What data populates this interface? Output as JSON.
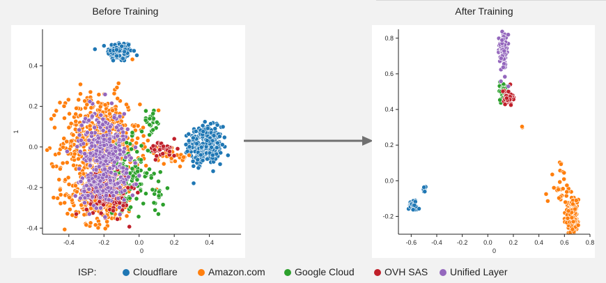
{
  "chart_data": [
    {
      "type": "scatter",
      "title": "Before Training",
      "xlabel": "0",
      "ylabel": "1",
      "xlim": [
        -0.55,
        0.58
      ],
      "ylim": [
        -0.43,
        0.58
      ],
      "xticks": [
        "-0.4",
        "-0.2",
        "0.0",
        "0.2",
        "0.4"
      ],
      "xtick_values": [
        -0.4,
        -0.2,
        0.0,
        0.2,
        0.4
      ],
      "yticks": [
        "-0.4",
        "-0.2",
        "0.0",
        "0.2",
        "0.4"
      ],
      "ytick_values": [
        -0.4,
        -0.2,
        0.0,
        0.2,
        0.4
      ],
      "grid": false,
      "series": [
        {
          "name": "Cloudflare",
          "color": "#1f77b4",
          "clusters": [
            {
              "cx": -0.11,
              "cy": 0.47,
              "sx": 0.035,
              "sy": 0.025,
              "n": 140
            },
            {
              "cx": 0.38,
              "cy": 0.01,
              "sx": 0.045,
              "sy": 0.045,
              "n": 330
            }
          ]
        },
        {
          "name": "Amazon.com",
          "color": "#ff7f0e",
          "clusters": [
            {
              "cx": -0.22,
              "cy": 0.02,
              "sx": 0.11,
              "sy": 0.12,
              "n": 520
            },
            {
              "cx": -0.22,
              "cy": -0.24,
              "sx": 0.1,
              "sy": 0.07,
              "n": 260
            },
            {
              "cx": 0.2,
              "cy": -0.05,
              "sx": 0.05,
              "sy": 0.02,
              "n": 30
            }
          ]
        },
        {
          "name": "Google Cloud",
          "color": "#2ca02c",
          "clusters": [
            {
              "cx": -0.05,
              "cy": -0.13,
              "sx": 0.06,
              "sy": 0.08,
              "n": 110
            },
            {
              "cx": 0.07,
              "cy": 0.13,
              "sx": 0.025,
              "sy": 0.03,
              "n": 22
            },
            {
              "cx": 0.09,
              "cy": -0.25,
              "sx": 0.04,
              "sy": 0.07,
              "n": 18
            }
          ]
        },
        {
          "name": "OVH SAS",
          "color": "#c0202a",
          "clusters": [
            {
              "cx": -0.18,
              "cy": -0.22,
              "sx": 0.06,
              "sy": 0.06,
              "n": 130
            },
            {
              "cx": 0.14,
              "cy": -0.01,
              "sx": 0.04,
              "sy": 0.02,
              "n": 40
            }
          ]
        },
        {
          "name": "Unified Layer",
          "color": "#9467bd",
          "clusters": [
            {
              "cx": -0.2,
              "cy": 0.0,
              "sx": 0.07,
              "sy": 0.09,
              "n": 260
            },
            {
              "cx": -0.2,
              "cy": -0.2,
              "sx": 0.07,
              "sy": 0.05,
              "n": 130
            }
          ]
        }
      ]
    },
    {
      "type": "scatter",
      "title": "After Training",
      "xlabel": "0",
      "ylabel": "",
      "xlim": [
        -0.7,
        0.8
      ],
      "ylim": [
        -0.3,
        0.85
      ],
      "xticks": [
        "-0.6",
        "-0.4",
        "-0.2",
        "0.0",
        "0.2",
        "0.4",
        "0.6",
        "0.8"
      ],
      "xtick_values": [
        -0.6,
        -0.4,
        -0.2,
        0.0,
        0.2,
        0.4,
        0.6,
        0.8
      ],
      "yticks": [
        "-0.2",
        "0.0",
        "0.2",
        "0.4",
        "0.6",
        "0.8"
      ],
      "ytick_values": [
        -0.2,
        0.0,
        0.2,
        0.4,
        0.6,
        0.8
      ],
      "grid": false,
      "series": [
        {
          "name": "Cloudflare",
          "color": "#1f77b4",
          "clusters": [
            {
              "cx": -0.58,
              "cy": -0.14,
              "sx": 0.02,
              "sy": 0.015,
              "n": 40
            },
            {
              "cx": -0.5,
              "cy": -0.05,
              "sx": 0.006,
              "sy": 0.008,
              "n": 6
            }
          ]
        },
        {
          "name": "Amazon.com",
          "color": "#ff7f0e",
          "clusters": [
            {
              "cx": 0.66,
              "cy": -0.2,
              "sx": 0.025,
              "sy": 0.045,
              "n": 220
            },
            {
              "cx": 0.56,
              "cy": -0.02,
              "sx": 0.04,
              "sy": 0.06,
              "n": 25
            },
            {
              "cx": 0.27,
              "cy": 0.3,
              "sx": 0.004,
              "sy": 0.004,
              "n": 2
            }
          ]
        },
        {
          "name": "Google Cloud",
          "color": "#2ca02c",
          "clusters": [
            {
              "cx": 0.11,
              "cy": 0.5,
              "sx": 0.018,
              "sy": 0.03,
              "n": 30
            }
          ]
        },
        {
          "name": "OVH SAS",
          "color": "#c0202a",
          "clusters": [
            {
              "cx": 0.16,
              "cy": 0.47,
              "sx": 0.025,
              "sy": 0.02,
              "n": 35
            }
          ]
        },
        {
          "name": "Unified Layer",
          "color": "#9467bd",
          "clusters": [
            {
              "cx": 0.12,
              "cy": 0.73,
              "sx": 0.015,
              "sy": 0.06,
              "n": 90
            }
          ]
        }
      ]
    }
  ],
  "legend": {
    "title": "ISP:",
    "items": [
      {
        "label": "Cloudflare",
        "color": "#1f77b4"
      },
      {
        "label": "Amazon.com",
        "color": "#ff7f0e"
      },
      {
        "label": "Google Cloud",
        "color": "#2ca02c"
      },
      {
        "label": "OVH SAS",
        "color": "#c0202a"
      },
      {
        "label": "Unified Layer",
        "color": "#9467bd"
      }
    ]
  },
  "arrow": {
    "color": "#707070"
  }
}
